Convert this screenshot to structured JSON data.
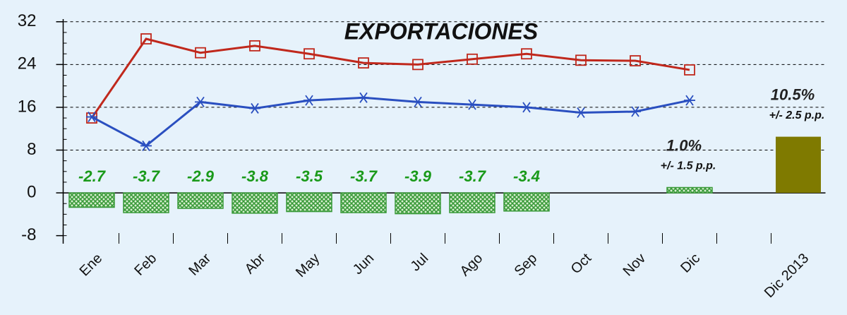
{
  "chart_data": {
    "type": "line-bar",
    "title": "EXPORTACIONES",
    "categories": [
      "Ene",
      "Feb",
      "Mar",
      "Abr",
      "May",
      "Jun",
      "Jul",
      "Ago",
      "Sep",
      "Oct",
      "Nov",
      "Dic",
      null,
      "Dic 2013"
    ],
    "series": [
      {
        "color": "#c0281c",
        "marker": "square",
        "values": [
          14,
          28.8,
          26.2,
          27.5,
          26,
          24.3,
          24,
          25,
          26,
          24.8,
          24.7,
          23,
          null,
          null
        ]
      },
      {
        "color": "#2a4fc0",
        "marker": "star",
        "values": [
          14.2,
          8.8,
          17,
          15.8,
          17.3,
          17.8,
          17,
          16.5,
          16,
          15,
          15.2,
          17.3,
          null,
          null
        ]
      }
    ],
    "bars": {
      "values": [
        -2.7,
        -3.7,
        -2.9,
        -3.8,
        -3.5,
        -3.7,
        -3.9,
        -3.7,
        -3.4,
        null,
        null,
        1.0,
        null,
        10.5
      ],
      "value_labels": [
        "-2.7",
        "-3.7",
        "-2.9",
        "-3.8",
        "-3.5",
        "-3.7",
        "-3.9",
        "-3.7",
        "-3.4",
        null,
        null,
        "1.0%",
        null,
        "10.5%"
      ],
      "margin_labels": [
        null,
        null,
        null,
        null,
        null,
        null,
        null,
        null,
        null,
        null,
        null,
        "+/- 1.5 p.p.",
        null,
        "+/- 2.5 p.p."
      ],
      "colors": [
        "#3a9a3a",
        "#3a9a3a",
        "#3a9a3a",
        "#3a9a3a",
        "#3a9a3a",
        "#3a9a3a",
        "#3a9a3a",
        "#3a9a3a",
        "#3a9a3a",
        null,
        null,
        "#3a9a3a",
        null,
        "#7f7a00"
      ],
      "hatched": [
        true,
        true,
        true,
        true,
        true,
        true,
        true,
        true,
        true,
        null,
        null,
        true,
        null,
        false
      ]
    },
    "ylim": [
      -9.5,
      32.5
    ],
    "yticks": [
      -8,
      0,
      8,
      16,
      24,
      32
    ],
    "grid": true
  }
}
